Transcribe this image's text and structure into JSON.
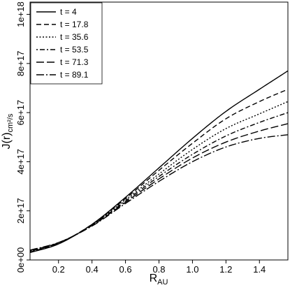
{
  "chart_data": {
    "type": "line",
    "xlabel": "R",
    "xlabel_sub": "AU",
    "ylabel": "J(r)",
    "ylabel_sub": "cm²/s",
    "xlim": [
      0.03,
      1.57
    ],
    "ylim": [
      0,
      1.05e+18
    ],
    "x_ticks": [
      0.2,
      0.4,
      0.6,
      0.8,
      1.0,
      1.2,
      1.4
    ],
    "x_tick_labels": [
      "0.2",
      "0.4",
      "0.6",
      "0.8",
      "1.0",
      "1.2",
      "1.4"
    ],
    "y_ticks": [
      0,
      2e+17,
      4e+17,
      6e+17,
      8e+17,
      1e+18
    ],
    "y_tick_labels": [
      "0e+00",
      "2e+17",
      "4e+17",
      "6e+17",
      "8e+17",
      "1e+18"
    ],
    "grid": false,
    "legend_position": "top-left",
    "x": [
      0.03,
      0.2,
      0.4,
      0.6,
      0.8,
      1.0,
      1.2,
      1.4,
      1.57
    ],
    "series": [
      {
        "name": "t = 4",
        "dash": "solid",
        "values": [
          3e+16,
          6.5e+16,
          1.45e+17,
          2.55e+17,
          3.75e+17,
          4.95e+17,
          6.05e+17,
          6.95e+17,
          7.7e+17
        ]
      },
      {
        "name": "t = 17.8",
        "dash": "dashed",
        "values": [
          3.2e+16,
          6.7e+16,
          1.45e+17,
          2.5e+17,
          3.65e+17,
          4.75e+17,
          5.75e+17,
          6.45e+17,
          6.95e+17
        ]
      },
      {
        "name": "t = 35.6",
        "dash": "dotted",
        "values": [
          3.4e+16,
          6.8e+16,
          1.43e+17,
          2.45e+17,
          3.5e+17,
          4.5e+17,
          5.35e+17,
          5.95e+17,
          6.45e+17
        ]
      },
      {
        "name": "t = 53.5",
        "dash": "dotdash",
        "values": [
          3.6e+16,
          6.9e+16,
          1.42e+17,
          2.4e+17,
          3.4e+17,
          4.3e+17,
          5.05e+17,
          5.6e+17,
          6e+17
        ]
      },
      {
        "name": "t = 71.3",
        "dash": "longdash",
        "values": [
          3.8e+16,
          7e+16,
          1.4e+17,
          2.35e+17,
          3.3e+17,
          4.15e+17,
          4.8e+17,
          5.25e+17,
          5.55e+17
        ]
      },
      {
        "name": "t = 89.1",
        "dash": "longdashdot",
        "values": [
          4e+16,
          7.1e+16,
          1.38e+17,
          2.3e+17,
          3.2e+17,
          4e+17,
          4.6e+17,
          4.95e+17,
          5.1e+17
        ]
      }
    ]
  }
}
